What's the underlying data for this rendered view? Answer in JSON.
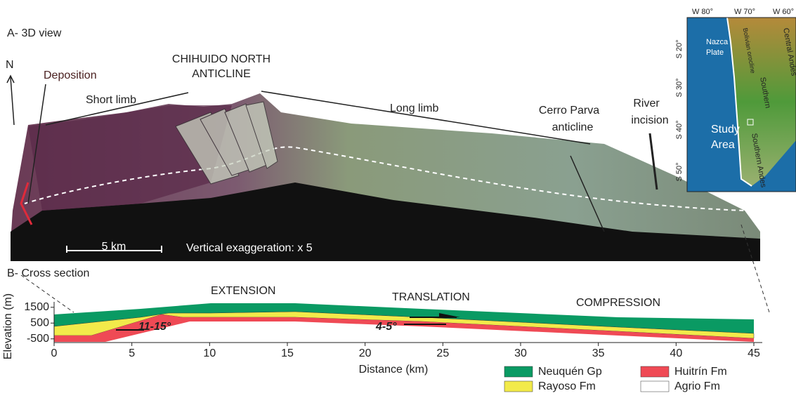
{
  "panel_a": {
    "title": "A- 3D view",
    "north": "N",
    "deposition": "Deposition",
    "short_limb": "Short limb",
    "anticline_name": [
      "CHIHUIDO NORTH",
      "ANTICLINE"
    ],
    "long_limb": "Long limb",
    "cerro_parva": [
      "Cerro Parva",
      "anticline"
    ],
    "river_incision": [
      "River",
      "incision"
    ],
    "scale_bar": "5 km",
    "exaggeration": "Vertical exaggeration: x 5"
  },
  "inset_map": {
    "lon_labels": [
      "W 80°",
      "W 70°",
      "W 60°"
    ],
    "lat_labels": [
      "S 20°",
      "S 30°",
      "S 40°",
      "S 50°"
    ],
    "nazca": [
      "Nazca",
      "Plate"
    ],
    "central_andes": "Central Andes",
    "orocline": "Bolivian orocline",
    "southern": "Southern",
    "study_area": [
      "Study",
      "Area"
    ],
    "southern_andes": "Southern Andes"
  },
  "panel_b": {
    "title": "B- Cross section",
    "extension": "EXTENSION",
    "translation": "TRANSLATION",
    "compression": "COMPRESSION",
    "angle_1": "11-15°",
    "angle_2": "4-5°",
    "x_label": "Distance (km)",
    "y_label": "Elevation (m)",
    "xlim": [
      0,
      46
    ],
    "xticks": [
      0,
      5,
      10,
      15,
      20,
      25,
      30,
      35,
      40,
      45
    ],
    "ylim": [
      -600,
      1800
    ],
    "yticks": [
      1500,
      500,
      -500
    ],
    "legend": [
      {
        "name": "Neuquén Gp",
        "color": "#0a9a63"
      },
      {
        "name": "Rayoso Fm",
        "color": "#f2ea4a"
      },
      {
        "name": "Huitrín Fm",
        "color": "#ef4a55"
      },
      {
        "name": "Agrio Fm",
        "color": "#ffffff"
      }
    ]
  }
}
